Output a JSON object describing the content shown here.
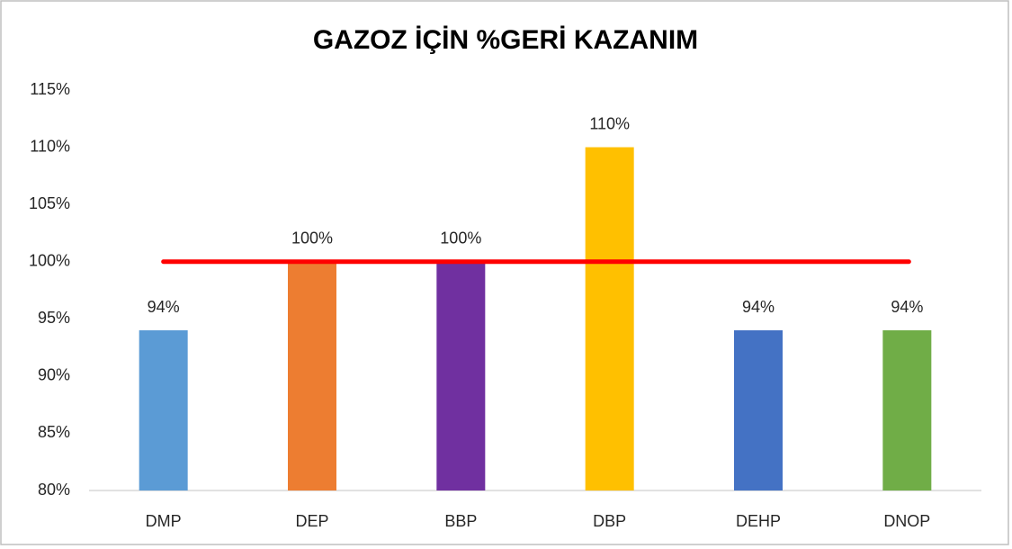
{
  "chart_data": {
    "type": "bar",
    "title": "GAZOZ İÇİN %GERİ KAZANIM",
    "categories": [
      "DMP",
      "DEP",
      "BBP",
      "DBP",
      "DEHP",
      "DNOP"
    ],
    "values": [
      94,
      100,
      100,
      110,
      94,
      94
    ],
    "value_labels": [
      "94%",
      "100%",
      "100%",
      "110%",
      "94%",
      "94%"
    ],
    "colors": [
      "#5b9bd5",
      "#ed7d31",
      "#7030a0",
      "#ffc000",
      "#4472c4",
      "#70ad47"
    ],
    "ylim": [
      80,
      115
    ],
    "yticks": [
      {
        "value": 80,
        "label": "80%"
      },
      {
        "value": 85,
        "label": "85%"
      },
      {
        "value": 90,
        "label": "90%"
      },
      {
        "value": 95,
        "label": "95%"
      },
      {
        "value": 100,
        "label": "100%"
      },
      {
        "value": 105,
        "label": "105%"
      },
      {
        "value": 110,
        "label": "110%"
      },
      {
        "value": 115,
        "label": "115%"
      }
    ],
    "reference_line": {
      "value": 100,
      "color": "#ff0000"
    }
  }
}
